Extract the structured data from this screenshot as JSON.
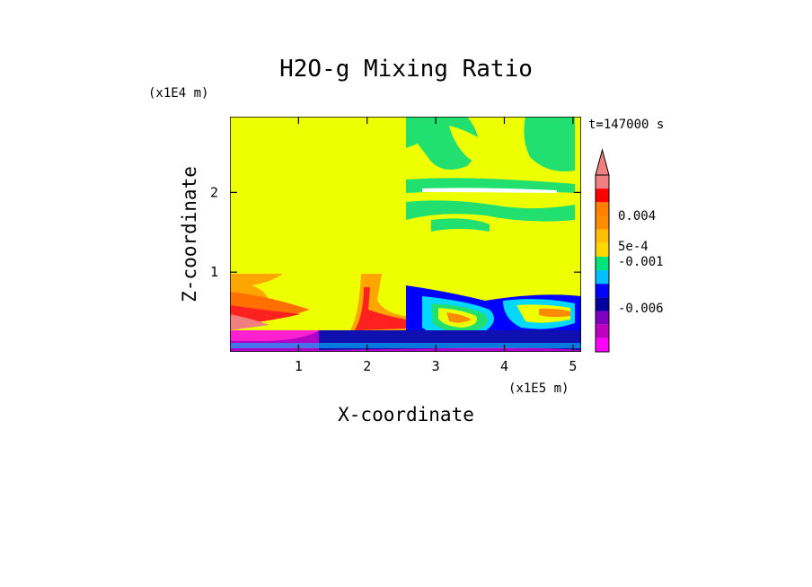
{
  "chart_data": {
    "type": "heatmap",
    "title": "H2O-g Mixing Ratio",
    "time_label": "t=147000 s",
    "xlabel": "X-coordinate",
    "ylabel": "Z-coordinate",
    "x_multiplier": "(x1E5 m)",
    "y_multiplier": "(x1E4 m)",
    "xlim": [
      0,
      5.12
    ],
    "ylim": [
      0,
      2.95
    ],
    "x_ticks": [
      1,
      2,
      3,
      4,
      5
    ],
    "x_tick_labels": [
      "1",
      "2",
      "3",
      "4",
      "5"
    ],
    "y_ticks": [
      1,
      2
    ],
    "y_tick_labels": [
      "1",
      "2"
    ],
    "colorbar": {
      "labels": [
        "0.004",
        "5e-4",
        "-0.001",
        "-0.006"
      ],
      "colors_top_to_bottom": [
        "#f08080",
        "#ff0000",
        "#ff7f00",
        "#ff8c00",
        "#ffbf00",
        "#ffd700",
        "#00e57a",
        "#00bfff",
        "#0000ff",
        "#0000a0",
        "#7f00bf",
        "#bf00bf",
        "#ff00ff"
      ],
      "extends_top": true
    },
    "regions": [
      {
        "name": "upper-left-background",
        "color": "#f0ff00",
        "x_range": [
          0,
          2.58
        ],
        "y_range": [
          1.0,
          2.95
        ]
      },
      {
        "name": "upper-right-background",
        "color": "#f0ff00",
        "x_range": [
          2.58,
          5.12
        ],
        "y_range": [
          1.0,
          2.95
        ]
      },
      {
        "name": "surface-layer",
        "color": "#a000c0",
        "x_range": [
          0,
          5.12
        ],
        "y_range": [
          0,
          0.3
        ]
      }
    ]
  }
}
